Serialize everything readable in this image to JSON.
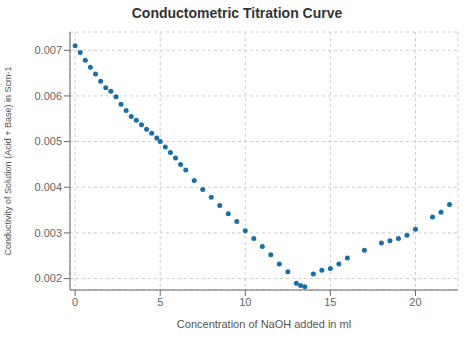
{
  "chart_data": {
    "type": "scatter",
    "title": "Conductometric Titration Curve",
    "xlabel": "Concentration of NaOH added in ml",
    "ylabel": "Conductivity of Solution (Acid + Base) in Scm-1",
    "color": "#1a6fa8",
    "xlim": [
      -0.3,
      22.5
    ],
    "ylim": [
      0.00175,
      0.0074
    ],
    "xticks": [
      0,
      5,
      10,
      15,
      20
    ],
    "yticks": [
      0.002,
      0.003,
      0.004,
      0.005,
      0.006,
      0.007
    ],
    "grid": true,
    "x": [
      0.0,
      0.3,
      0.6,
      0.9,
      1.2,
      1.5,
      1.8,
      2.1,
      2.4,
      2.7,
      3.0,
      3.3,
      3.6,
      3.9,
      4.2,
      4.5,
      4.8,
      5.0,
      5.3,
      5.6,
      5.9,
      6.2,
      6.5,
      7.0,
      7.5,
      8.0,
      8.5,
      9.0,
      9.5,
      10.0,
      10.5,
      11.0,
      11.5,
      12.0,
      12.5,
      13.0,
      13.25,
      13.5,
      14.0,
      14.5,
      15.0,
      15.5,
      16.0,
      17.0,
      18.0,
      18.5,
      19.0,
      19.5,
      20.0,
      21.0,
      21.5,
      22.0
    ],
    "values": [
      0.0071,
      0.00695,
      0.00678,
      0.00663,
      0.00648,
      0.00632,
      0.00618,
      0.0061,
      0.00598,
      0.00582,
      0.00568,
      0.00555,
      0.00547,
      0.00537,
      0.00527,
      0.00518,
      0.00508,
      0.005,
      0.00488,
      0.00476,
      0.00464,
      0.0045,
      0.00438,
      0.00415,
      0.00395,
      0.00378,
      0.0036,
      0.00342,
      0.00325,
      0.00305,
      0.00288,
      0.0027,
      0.00252,
      0.00232,
      0.00215,
      0.0019,
      0.00185,
      0.00182,
      0.0021,
      0.00218,
      0.00222,
      0.00232,
      0.00245,
      0.00262,
      0.00278,
      0.00283,
      0.00288,
      0.00295,
      0.00308,
      0.00335,
      0.00345,
      0.00362
    ]
  }
}
